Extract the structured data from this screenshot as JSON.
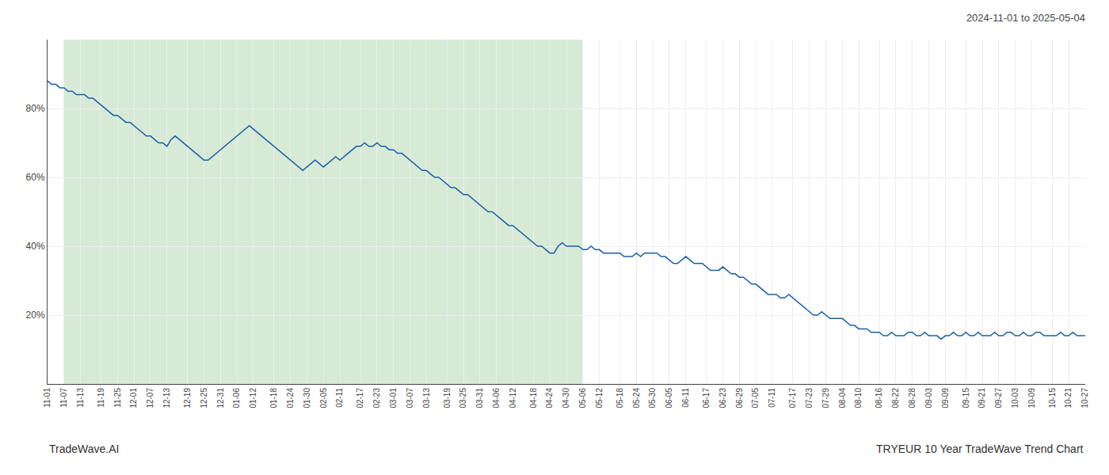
{
  "chart_data": {
    "type": "line",
    "title": "2024-11-01 to 2025-05-04",
    "annotations": [
      "TradeWave.AI",
      "TRYEUR 10 Year TradeWave Trend Chart"
    ],
    "color": "#1a5fa8",
    "categories": [
      "11-01",
      null,
      null,
      null,
      "11-07",
      null,
      null,
      null,
      "11-13",
      null,
      null,
      null,
      null,
      "11-19",
      null,
      null,
      null,
      "11-25",
      null,
      null,
      null,
      "12-01",
      null,
      null,
      null,
      "12-07",
      null,
      null,
      null,
      "12-13",
      null,
      null,
      null,
      null,
      "12-19",
      null,
      null,
      null,
      "12-25",
      null,
      null,
      null,
      "12-31",
      null,
      null,
      null,
      "01-06",
      null,
      null,
      null,
      "01-12",
      null,
      null,
      null,
      null,
      "01-18",
      null,
      null,
      null,
      "01-24",
      null,
      null,
      null,
      "01-30",
      null,
      null,
      null,
      "02-05",
      null,
      null,
      null,
      "02-11",
      null,
      null,
      null,
      null,
      "02-17",
      null,
      null,
      null,
      "02-23",
      null,
      null,
      null,
      "03-01",
      null,
      null,
      null,
      "03-07",
      null,
      null,
      null,
      "03-13",
      null,
      null,
      null,
      null,
      "03-19",
      null,
      null,
      null,
      "03-25",
      null,
      null,
      null,
      "03-31",
      null,
      null,
      null,
      "04-06",
      null,
      null,
      null,
      "04-12",
      null,
      null,
      null,
      null,
      "04-18",
      null,
      null,
      null,
      "04-24",
      null,
      null,
      null,
      "04-30",
      null,
      null,
      null,
      "05-06",
      null,
      null,
      null,
      "05-12",
      null,
      null,
      null,
      null,
      "05-18",
      null,
      null,
      null,
      "05-24",
      null,
      null,
      null,
      "05-30",
      null,
      null,
      null,
      "06-05",
      null,
      null,
      null,
      "06-11",
      null,
      null,
      null,
      null,
      "06-17",
      null,
      null,
      null,
      "06-23",
      null,
      null,
      null,
      "06-29",
      null,
      null,
      null,
      "07-05",
      null,
      null,
      null,
      "07-11",
      null,
      null,
      null,
      null,
      "07-17",
      null,
      null,
      null,
      "07-23",
      null,
      null,
      null,
      "07-29",
      null,
      null,
      null,
      "08-04",
      null,
      null,
      null,
      "08-10",
      null,
      null,
      null,
      null,
      "08-16",
      null,
      null,
      null,
      "08-22",
      null,
      null,
      null,
      "08-28",
      null,
      null,
      null,
      "09-03",
      null,
      null,
      null,
      "09-09",
      null,
      null,
      null,
      null,
      "09-15",
      null,
      null,
      null,
      "09-21",
      null,
      null,
      null,
      "09-27",
      null,
      null,
      null,
      "10-03",
      null,
      null,
      null,
      "10-09",
      null,
      null,
      null,
      null,
      "10-15",
      null,
      null,
      null,
      "10-21",
      null,
      null,
      null,
      "10-27"
    ],
    "values": [
      88,
      87,
      87,
      86,
      86,
      85,
      85,
      84,
      84,
      84,
      83,
      83,
      82,
      81,
      80,
      79,
      78,
      78,
      77,
      76,
      76,
      75,
      74,
      73,
      72,
      72,
      71,
      70,
      70,
      69,
      71,
      72,
      71,
      70,
      69,
      68,
      67,
      66,
      65,
      65,
      66,
      67,
      68,
      69,
      70,
      71,
      72,
      73,
      74,
      75,
      74,
      73,
      72,
      71,
      70,
      69,
      68,
      67,
      66,
      65,
      64,
      63,
      62,
      63,
      64,
      65,
      64,
      63,
      64,
      65,
      66,
      65,
      66,
      67,
      68,
      69,
      69,
      70,
      69,
      69,
      70,
      69,
      69,
      68,
      68,
      67,
      67,
      66,
      65,
      64,
      63,
      62,
      62,
      61,
      60,
      60,
      59,
      58,
      57,
      57,
      56,
      55,
      55,
      54,
      53,
      52,
      51,
      50,
      50,
      49,
      48,
      47,
      46,
      46,
      45,
      44,
      43,
      42,
      41,
      40,
      40,
      39,
      38,
      38,
      40,
      41,
      40,
      40,
      40,
      40,
      39,
      39,
      40,
      39,
      39,
      38,
      38,
      38,
      38,
      38,
      37,
      37,
      37,
      38,
      37,
      38,
      38,
      38,
      38,
      37,
      37,
      36,
      35,
      35,
      36,
      37,
      36,
      35,
      35,
      35,
      34,
      33,
      33,
      33,
      34,
      33,
      32,
      32,
      31,
      31,
      30,
      29,
      29,
      28,
      27,
      26,
      26,
      26,
      25,
      25,
      26,
      25,
      24,
      23,
      22,
      21,
      20,
      20,
      21,
      20,
      19,
      19,
      19,
      19,
      18,
      17,
      17,
      16,
      16,
      16,
      15,
      15,
      15,
      14,
      14,
      15,
      14,
      14,
      14,
      15,
      15,
      14,
      14,
      15,
      14,
      14,
      14,
      13,
      14,
      14,
      15,
      14,
      14,
      15,
      14,
      14,
      15,
      14,
      14,
      14,
      15,
      14,
      14,
      15,
      15,
      14,
      14,
      15,
      14,
      14,
      15,
      15,
      14,
      14,
      14,
      14,
      15,
      14,
      14,
      15,
      14,
      14,
      14
    ],
    "spans": [
      {
        "start": "11-07",
        "end": "05-06",
        "color": "#d6ead6"
      }
    ],
    "ylim": [
      0,
      100
    ],
    "yticks": [
      {
        "value": 20,
        "label": "20%"
      },
      {
        "value": 40,
        "label": "40%"
      },
      {
        "value": 60,
        "label": "60%"
      },
      {
        "value": 80,
        "label": "80%"
      }
    ],
    "grid": true
  }
}
